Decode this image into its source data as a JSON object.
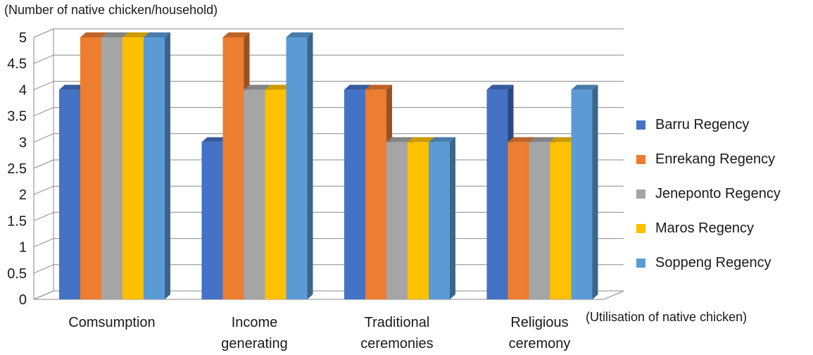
{
  "chart_data": {
    "type": "bar",
    "ylabel": "(Number of native chicken/household)",
    "xlabel": "(Utilisation of native chicken)",
    "categories": [
      [
        "Comsumption"
      ],
      [
        "Income",
        "generating"
      ],
      [
        "Traditional",
        "ceremonies"
      ],
      [
        "Religious",
        "ceremony"
      ]
    ],
    "ylim": [
      0,
      5
    ],
    "yticks": [
      "0",
      "0.5",
      "1",
      "1.5",
      "2",
      "2.5",
      "3",
      "3.5",
      "4",
      "4.5",
      "5"
    ],
    "grid": true,
    "legend_position": "right",
    "series": [
      {
        "name": "Barru Regency",
        "color": "#4472C4",
        "values": [
          4,
          3,
          4,
          4
        ]
      },
      {
        "name": "Enrekang Regency",
        "color": "#ED7D31",
        "values": [
          5,
          5,
          4,
          3
        ]
      },
      {
        "name": "Jeneponto Regency",
        "color": "#A5A5A5",
        "values": [
          5,
          4,
          3,
          3
        ]
      },
      {
        "name": "Maros Regency",
        "color": "#FFC000",
        "values": [
          5,
          4,
          3,
          3
        ]
      },
      {
        "name": "Soppeng Regency",
        "color": "#5B9BD5",
        "values": [
          5,
          5,
          3,
          4
        ]
      }
    ]
  }
}
